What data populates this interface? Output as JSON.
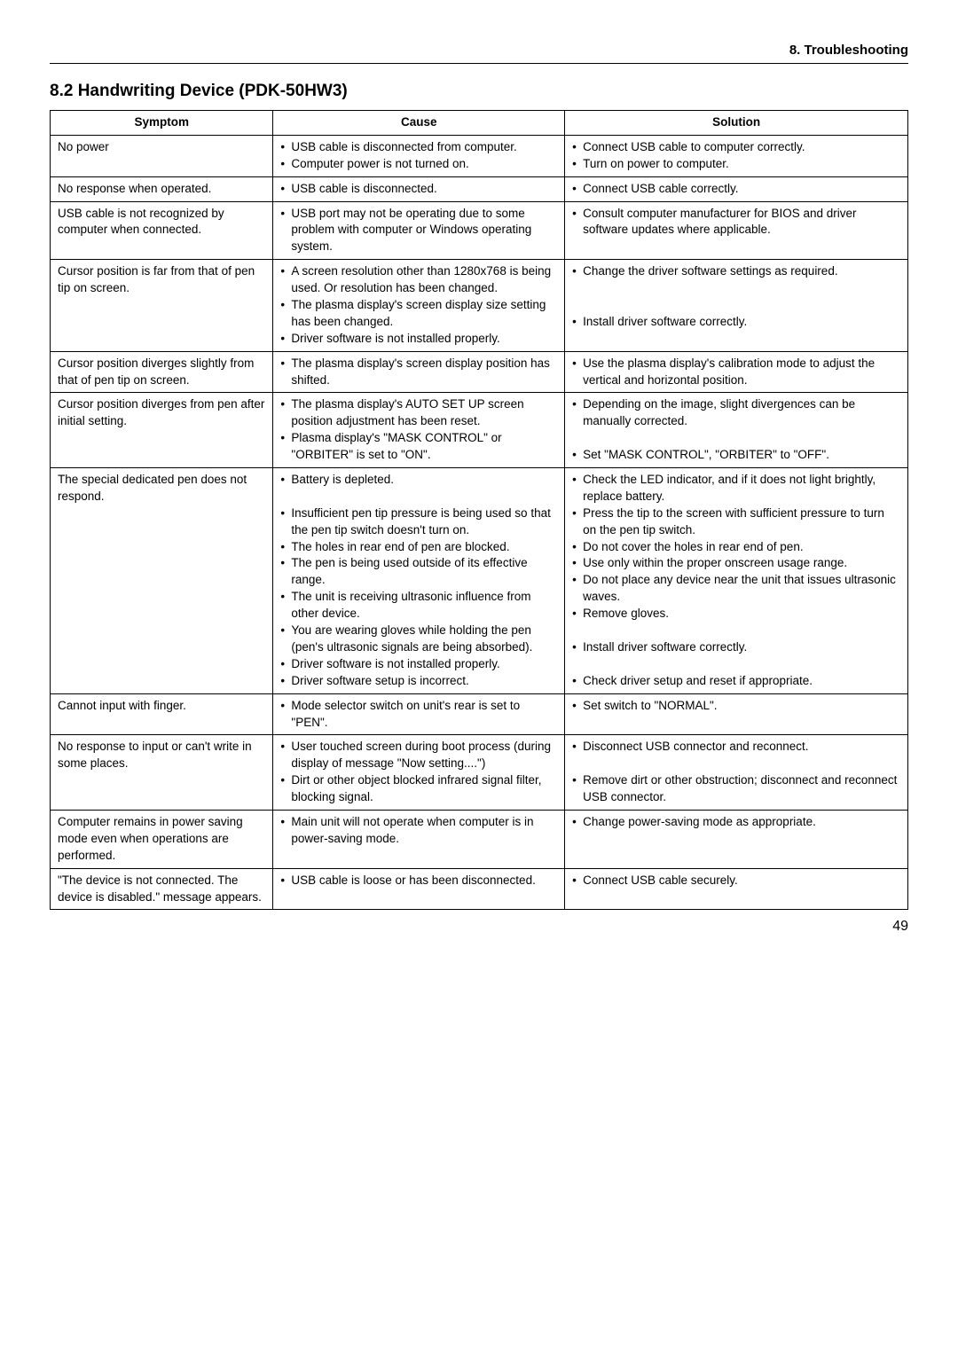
{
  "header": {
    "label": "8. Troubleshooting"
  },
  "section": {
    "title": "8.2  Handwriting Device (PDK-50HW3)"
  },
  "table": {
    "columns": [
      "Symptom",
      "Cause",
      "Solution"
    ],
    "col_widths": [
      "26%",
      "34%",
      "40%"
    ],
    "rows": [
      {
        "symptom": "No power",
        "cause": [
          "USB cable is disconnected from computer.",
          "Computer power is not turned on."
        ],
        "solution": [
          "Connect USB cable to computer correctly.",
          "Turn on power to computer."
        ]
      },
      {
        "symptom": "No response when operated.",
        "cause": [
          "USB cable is disconnected."
        ],
        "solution": [
          "Connect USB cable correctly."
        ]
      },
      {
        "symptom": "USB cable is not recognized by computer when connected.",
        "cause": [
          "USB port may not be operating due to some problem with computer or Windows operating system."
        ],
        "solution": [
          "Consult computer manufacturer for BIOS and driver software updates where applicable."
        ]
      },
      {
        "symptom": "Cursor position is far from that of pen tip on screen.",
        "cause": [
          "A screen resolution other than 1280x768 is being used. Or resolution has been changed.",
          "The plasma display's screen display size setting has been changed.",
          "Driver software is not installed properly."
        ],
        "solution": [
          "Change the driver software settings as required.",
          "",
          "Install driver software correctly."
        ],
        "solution_blank_after": [
          0,
          1
        ]
      },
      {
        "symptom": "Cursor position diverges slightly from that of pen tip on screen.",
        "cause": [
          "The plasma display's screen display position has shifted."
        ],
        "solution": [
          "Use the plasma display's calibration mode to adjust the vertical and horizontal position."
        ]
      },
      {
        "symptom": "Cursor position diverges from pen after initial setting.",
        "cause": [
          "The plasma display's AUTO SET UP screen position adjustment has been reset.",
          "Plasma display's \"MASK CONTROL\" or \"ORBITER\" is set to \"ON\"."
        ],
        "solution": [
          "Depending on the image, slight divergences can be manually corrected.",
          "Set \"MASK CONTROL\", \"ORBITER\" to \"OFF\"."
        ],
        "solution_blank_after": [
          0
        ]
      },
      {
        "symptom": "The special dedicated pen does not respond.",
        "cause": [
          "Battery is depleted.",
          "Insufficient pen tip pressure is being used so that the pen tip switch doesn't turn on.",
          "The holes in rear end of pen are blocked.",
          "The pen is being used outside of its effective range.",
          "The unit is receiving ultrasonic influence from other device.",
          "You are wearing gloves while holding the pen (pen's ultrasonic signals are being absorbed).",
          "Driver software is not installed properly.",
          "Driver software setup is incorrect."
        ],
        "cause_blank_after": [
          0
        ],
        "solution": [
          "Check the LED indicator, and if it does not light brightly, replace battery.",
          "Press the tip to the screen with sufficient pressure to turn on the pen tip switch.",
          "Do not cover the holes in rear end of pen.",
          "Use only within the proper onscreen usage range.",
          "Do not place any device near the unit that issues ultrasonic waves.",
          "Remove gloves.",
          "Install driver software correctly.",
          "Check driver setup and reset if appropriate."
        ],
        "solution_blank_after": [
          5,
          6
        ]
      },
      {
        "symptom": "Cannot input with finger.",
        "cause": [
          "Mode selector switch on unit's rear is set to \"PEN\"."
        ],
        "solution": [
          "Set switch to \"NORMAL\"."
        ]
      },
      {
        "symptom": "No response to input or can't write in some places.",
        "cause": [
          "User touched screen during boot process (during display of message \"Now setting....\")",
          "Dirt or other object blocked infrared signal filter, blocking signal."
        ],
        "solution": [
          "Disconnect USB connector and reconnect.",
          "Remove dirt or other obstruction; disconnect and reconnect USB connector."
        ],
        "solution_blank_after": [
          0
        ]
      },
      {
        "symptom": "Computer remains in power saving mode even when operations are performed.",
        "cause": [
          "Main unit will not operate when computer is in power-saving mode."
        ],
        "solution": [
          "Change power-saving mode as appropriate."
        ]
      },
      {
        "symptom": "\"The device is not connected. The device is disabled.\" message appears.",
        "cause": [
          "USB cable is loose or has been disconnected."
        ],
        "solution": [
          "Connect USB cable securely."
        ]
      }
    ]
  },
  "page_number": "49"
}
